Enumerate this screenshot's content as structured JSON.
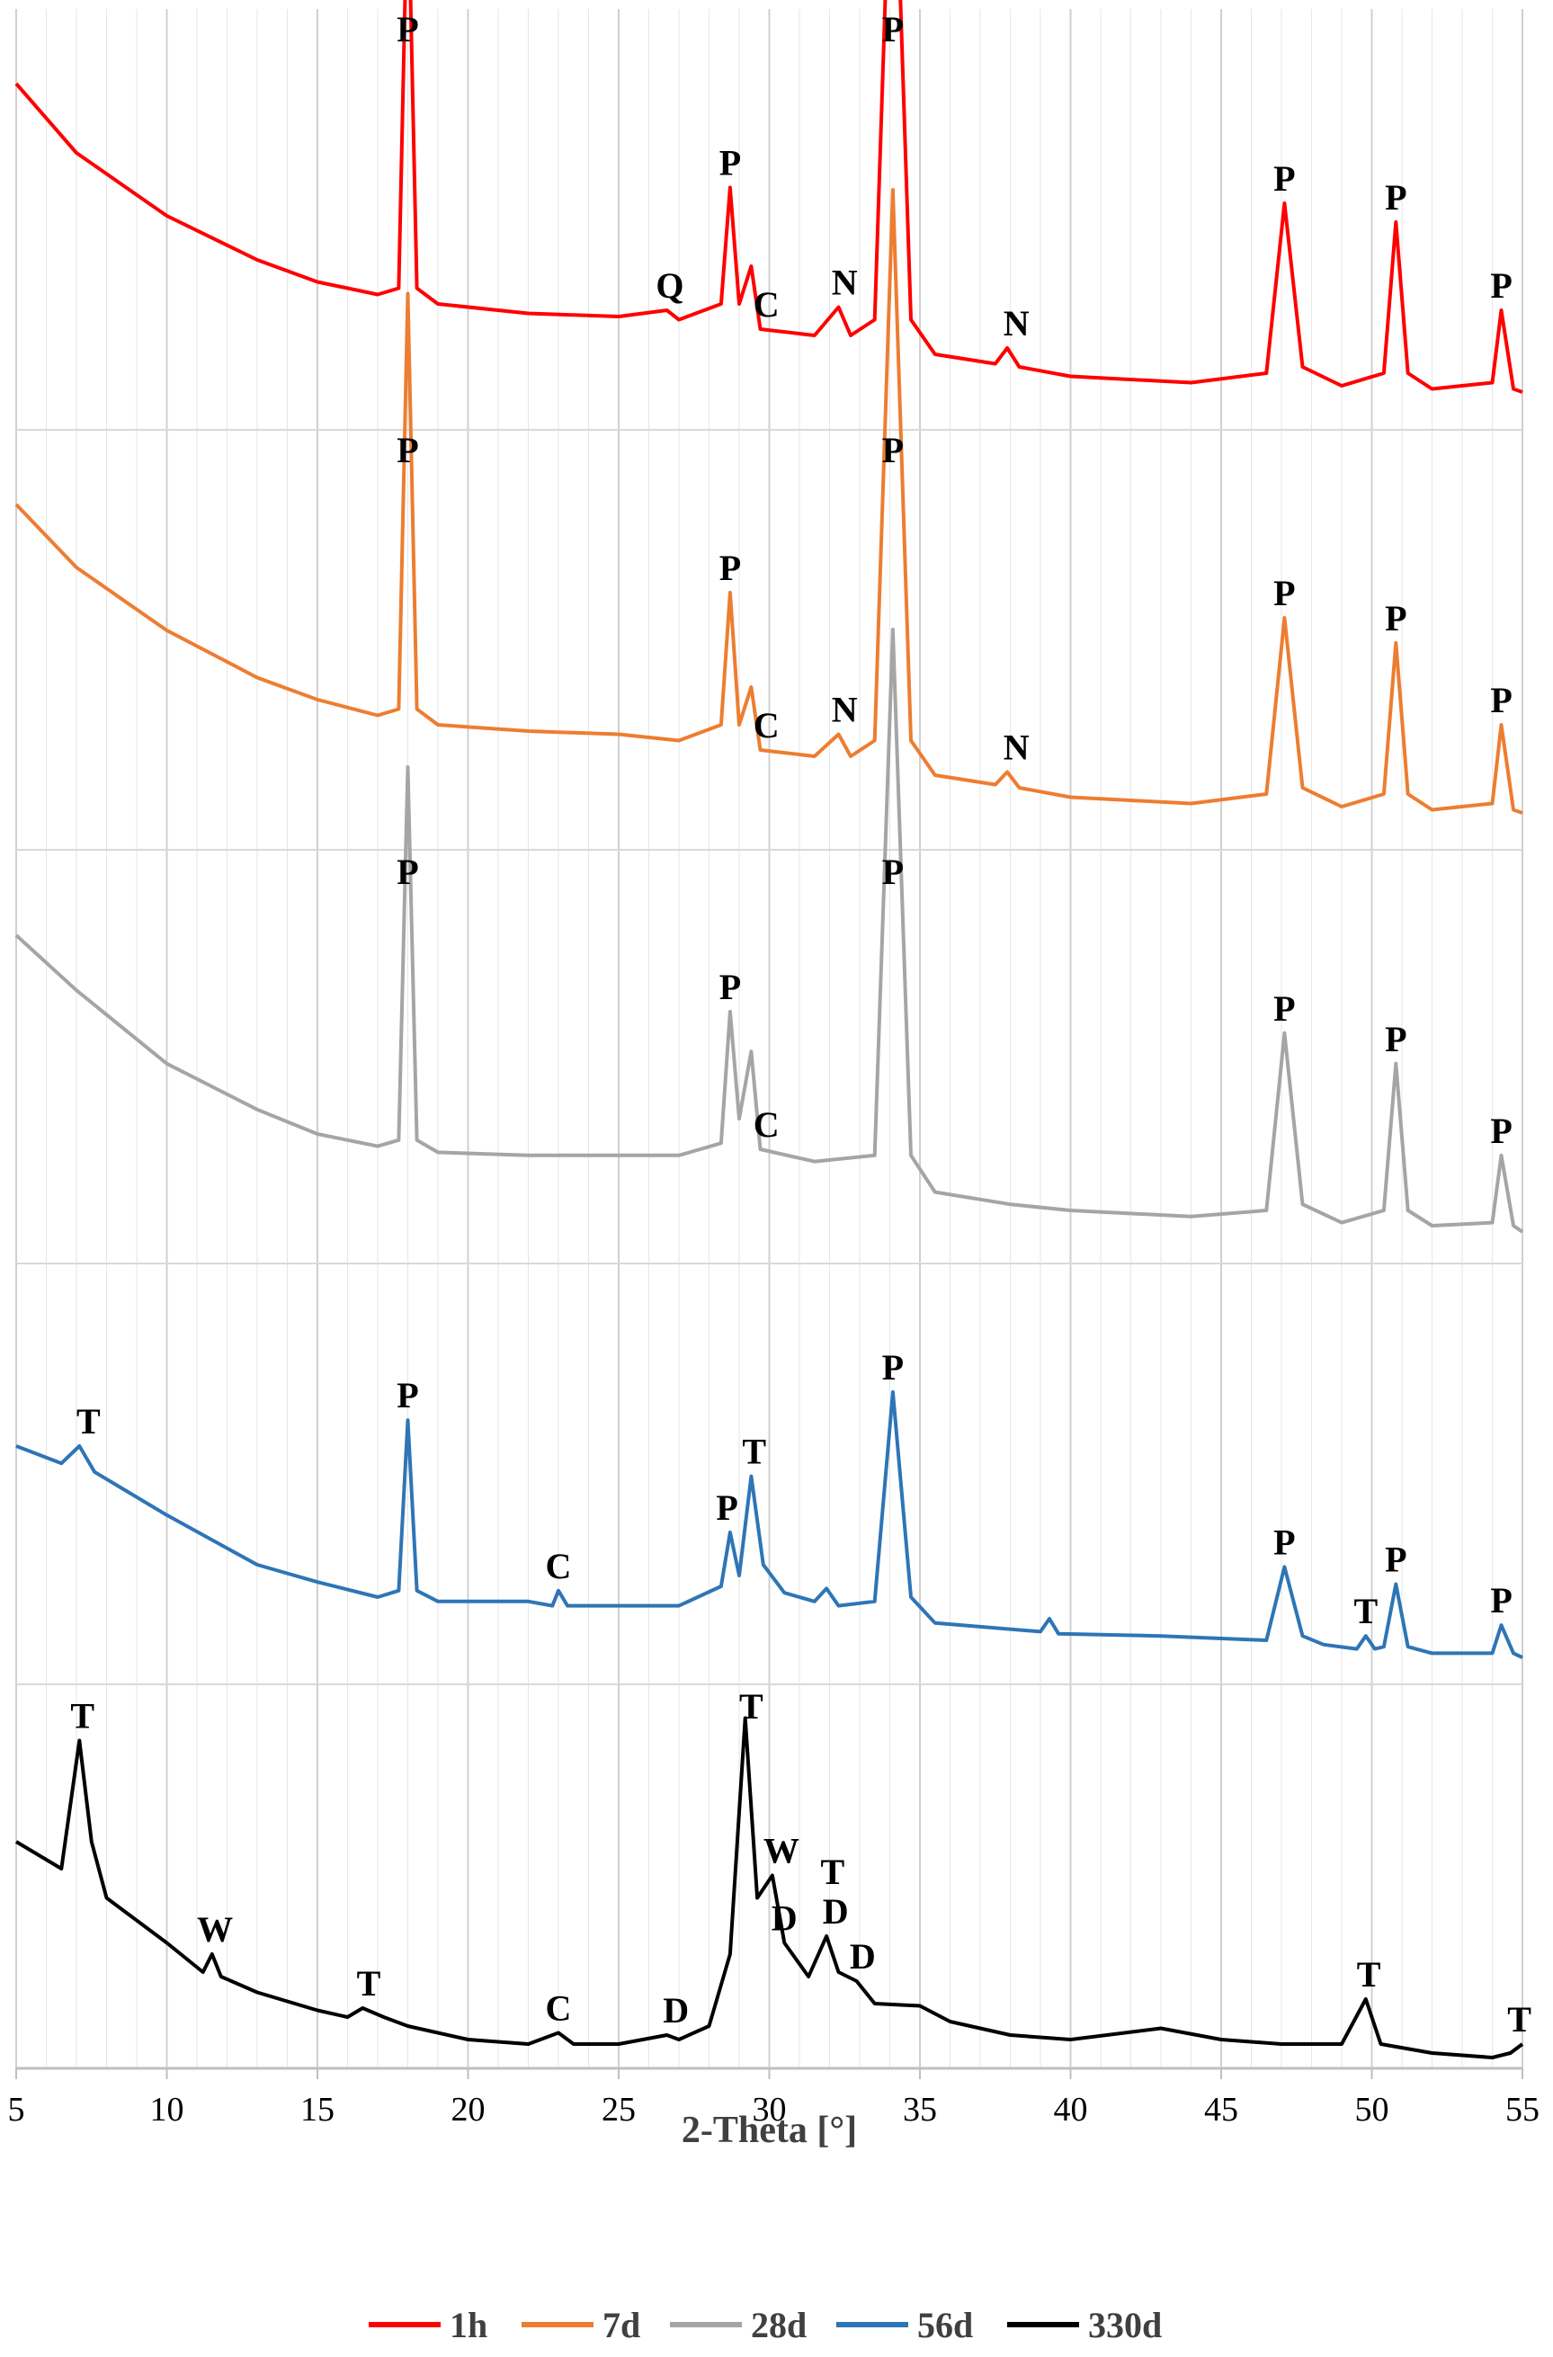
{
  "chart_data": {
    "type": "line",
    "xlabel": "2-Theta [°]",
    "xlim": [
      5,
      55
    ],
    "xticks": [
      5,
      10,
      15,
      20,
      25,
      30,
      35,
      40,
      45,
      50,
      55
    ],
    "ylabel": "",
    "yticks_shown": false,
    "grid": "vertical minor gridlines",
    "legend_position": "bottom",
    "series": [
      {
        "name": "1h",
        "color": "#ff0000",
        "points": [
          [
            5,
            1.0
          ],
          [
            7,
            0.78
          ],
          [
            10,
            0.58
          ],
          [
            13,
            0.44
          ],
          [
            15,
            0.37
          ],
          [
            17,
            0.33
          ],
          [
            17.7,
            0.35
          ],
          [
            18,
            1.67
          ],
          [
            18.3,
            0.35
          ],
          [
            19,
            0.3
          ],
          [
            22,
            0.27
          ],
          [
            25,
            0.26
          ],
          [
            26.6,
            0.28
          ],
          [
            27,
            0.25
          ],
          [
            28.4,
            0.3
          ],
          [
            28.7,
            0.67
          ],
          [
            29,
            0.3
          ],
          [
            29.4,
            0.42
          ],
          [
            29.7,
            0.22
          ],
          [
            31.5,
            0.2
          ],
          [
            32.3,
            0.29
          ],
          [
            32.7,
            0.2
          ],
          [
            33.5,
            0.25
          ],
          [
            34.1,
            2.0
          ],
          [
            34.7,
            0.25
          ],
          [
            35.5,
            0.14
          ],
          [
            37.5,
            0.11
          ],
          [
            37.9,
            0.16
          ],
          [
            38.3,
            0.1
          ],
          [
            40,
            0.07
          ],
          [
            44,
            0.05
          ],
          [
            46.5,
            0.08
          ],
          [
            47.1,
            0.62
          ],
          [
            47.7,
            0.1
          ],
          [
            49,
            0.04
          ],
          [
            50.4,
            0.08
          ],
          [
            50.8,
            0.56
          ],
          [
            51.2,
            0.08
          ],
          [
            52,
            0.03
          ],
          [
            54,
            0.05
          ],
          [
            54.3,
            0.28
          ],
          [
            54.7,
            0.03
          ],
          [
            55,
            0.02
          ]
        ],
        "labels": [
          {
            "x": 18.0,
            "text": "P"
          },
          {
            "x": 26.7,
            "text": "Q"
          },
          {
            "x": 28.7,
            "text": "P"
          },
          {
            "x": 29.9,
            "text": "C"
          },
          {
            "x": 32.5,
            "text": "N"
          },
          {
            "x": 34.1,
            "text": "P"
          },
          {
            "x": 38.2,
            "text": "N"
          },
          {
            "x": 47.1,
            "text": "P"
          },
          {
            "x": 50.8,
            "text": "P"
          },
          {
            "x": 54.3,
            "text": "P"
          }
        ]
      },
      {
        "name": "7d",
        "color": "#ed7d31",
        "points": [
          [
            5,
            1.0
          ],
          [
            7,
            0.8
          ],
          [
            10,
            0.6
          ],
          [
            13,
            0.45
          ],
          [
            15,
            0.38
          ],
          [
            17,
            0.33
          ],
          [
            17.7,
            0.35
          ],
          [
            18,
            1.67
          ],
          [
            18.3,
            0.35
          ],
          [
            19,
            0.3
          ],
          [
            22,
            0.28
          ],
          [
            25,
            0.27
          ],
          [
            27,
            0.25
          ],
          [
            28.4,
            0.3
          ],
          [
            28.7,
            0.72
          ],
          [
            29,
            0.3
          ],
          [
            29.4,
            0.42
          ],
          [
            29.7,
            0.22
          ],
          [
            31.5,
            0.2
          ],
          [
            32.3,
            0.27
          ],
          [
            32.7,
            0.2
          ],
          [
            33.5,
            0.25
          ],
          [
            34.1,
            2.0
          ],
          [
            34.7,
            0.25
          ],
          [
            35.5,
            0.14
          ],
          [
            37.5,
            0.11
          ],
          [
            37.9,
            0.15
          ],
          [
            38.3,
            0.1
          ],
          [
            40,
            0.07
          ],
          [
            44,
            0.05
          ],
          [
            46.5,
            0.08
          ],
          [
            47.1,
            0.64
          ],
          [
            47.7,
            0.1
          ],
          [
            49,
            0.04
          ],
          [
            50.4,
            0.08
          ],
          [
            50.8,
            0.56
          ],
          [
            51.2,
            0.08
          ],
          [
            52,
            0.03
          ],
          [
            54,
            0.05
          ],
          [
            54.3,
            0.3
          ],
          [
            54.7,
            0.03
          ],
          [
            55,
            0.02
          ]
        ],
        "labels": [
          {
            "x": 18.0,
            "text": "P"
          },
          {
            "x": 28.7,
            "text": "P"
          },
          {
            "x": 29.9,
            "text": "C"
          },
          {
            "x": 32.5,
            "text": "N"
          },
          {
            "x": 34.1,
            "text": "P"
          },
          {
            "x": 38.2,
            "text": "N"
          },
          {
            "x": 47.1,
            "text": "P"
          },
          {
            "x": 50.8,
            "text": "P"
          },
          {
            "x": 54.3,
            "text": "P"
          }
        ]
      },
      {
        "name": "28d",
        "color": "#a5a5a5",
        "points": [
          [
            5,
            1.0
          ],
          [
            7,
            0.82
          ],
          [
            10,
            0.58
          ],
          [
            13,
            0.43
          ],
          [
            15,
            0.35
          ],
          [
            17,
            0.31
          ],
          [
            17.7,
            0.33
          ],
          [
            18,
            1.55
          ],
          [
            18.3,
            0.33
          ],
          [
            19,
            0.29
          ],
          [
            22,
            0.28
          ],
          [
            25,
            0.28
          ],
          [
            27,
            0.28
          ],
          [
            28.4,
            0.32
          ],
          [
            28.7,
            0.75
          ],
          [
            29,
            0.4
          ],
          [
            29.4,
            0.62
          ],
          [
            29.7,
            0.3
          ],
          [
            31.5,
            0.26
          ],
          [
            33.5,
            0.28
          ],
          [
            34.1,
            2.0
          ],
          [
            34.7,
            0.28
          ],
          [
            35.5,
            0.16
          ],
          [
            38,
            0.12
          ],
          [
            40,
            0.1
          ],
          [
            44,
            0.08
          ],
          [
            46.5,
            0.1
          ],
          [
            47.1,
            0.68
          ],
          [
            47.7,
            0.12
          ],
          [
            49,
            0.06
          ],
          [
            50.4,
            0.1
          ],
          [
            50.8,
            0.58
          ],
          [
            51.2,
            0.1
          ],
          [
            52,
            0.05
          ],
          [
            54,
            0.06
          ],
          [
            54.3,
            0.28
          ],
          [
            54.7,
            0.05
          ],
          [
            55,
            0.03
          ]
        ],
        "labels": [
          {
            "x": 18.0,
            "text": "P"
          },
          {
            "x": 28.7,
            "text": "P"
          },
          {
            "x": 29.9,
            "text": "C"
          },
          {
            "x": 34.1,
            "text": "P"
          },
          {
            "x": 47.1,
            "text": "P"
          },
          {
            "x": 50.8,
            "text": "P"
          },
          {
            "x": 54.3,
            "text": "P"
          }
        ]
      },
      {
        "name": "56d",
        "color": "#2e75b6",
        "points": [
          [
            5,
            1.0
          ],
          [
            6.5,
            0.92
          ],
          [
            7.1,
            1.0
          ],
          [
            7.6,
            0.88
          ],
          [
            10,
            0.68
          ],
          [
            13,
            0.45
          ],
          [
            15,
            0.37
          ],
          [
            17,
            0.3
          ],
          [
            17.7,
            0.33
          ],
          [
            18,
            1.12
          ],
          [
            18.3,
            0.33
          ],
          [
            19,
            0.28
          ],
          [
            22,
            0.28
          ],
          [
            22.8,
            0.26
          ],
          [
            23,
            0.33
          ],
          [
            23.3,
            0.26
          ],
          [
            25,
            0.26
          ],
          [
            27,
            0.26
          ],
          [
            28.4,
            0.35
          ],
          [
            28.7,
            0.6
          ],
          [
            29,
            0.4
          ],
          [
            29.4,
            0.86
          ],
          [
            29.8,
            0.45
          ],
          [
            30.5,
            0.32
          ],
          [
            31.5,
            0.28
          ],
          [
            31.9,
            0.34
          ],
          [
            32.3,
            0.26
          ],
          [
            33.5,
            0.28
          ],
          [
            34.1,
            1.25
          ],
          [
            34.7,
            0.3
          ],
          [
            35.5,
            0.18
          ],
          [
            39,
            0.14
          ],
          [
            39.3,
            0.2
          ],
          [
            39.6,
            0.13
          ],
          [
            43,
            0.12
          ],
          [
            46.5,
            0.1
          ],
          [
            47.1,
            0.44
          ],
          [
            47.7,
            0.12
          ],
          [
            48.4,
            0.08
          ],
          [
            49.5,
            0.06
          ],
          [
            49.8,
            0.12
          ],
          [
            50.1,
            0.06
          ],
          [
            50.4,
            0.07
          ],
          [
            50.8,
            0.36
          ],
          [
            51.2,
            0.07
          ],
          [
            52,
            0.04
          ],
          [
            54,
            0.04
          ],
          [
            54.3,
            0.17
          ],
          [
            54.7,
            0.04
          ],
          [
            55,
            0.02
          ]
        ],
        "labels": [
          {
            "x": 7.4,
            "text": "T"
          },
          {
            "x": 18.0,
            "text": "P"
          },
          {
            "x": 23.0,
            "text": "C"
          },
          {
            "x": 28.6,
            "text": "P"
          },
          {
            "x": 29.5,
            "text": "T"
          },
          {
            "x": 34.1,
            "text": "P"
          },
          {
            "x": 47.1,
            "text": "P"
          },
          {
            "x": 49.8,
            "text": "T"
          },
          {
            "x": 50.8,
            "text": "P"
          },
          {
            "x": 54.3,
            "text": "P"
          }
        ]
      },
      {
        "name": "330d",
        "color": "#000000",
        "points": [
          [
            5,
            1.0
          ],
          [
            6.5,
            0.88
          ],
          [
            7.1,
            1.45
          ],
          [
            7.5,
            1.0
          ],
          [
            8,
            0.75
          ],
          [
            10,
            0.55
          ],
          [
            11.2,
            0.42
          ],
          [
            11.5,
            0.5
          ],
          [
            11.8,
            0.4
          ],
          [
            13,
            0.33
          ],
          [
            15,
            0.25
          ],
          [
            16,
            0.22
          ],
          [
            16.5,
            0.26
          ],
          [
            17.2,
            0.22
          ],
          [
            18,
            0.18
          ],
          [
            20,
            0.12
          ],
          [
            22,
            0.1
          ],
          [
            23,
            0.15
          ],
          [
            23.5,
            0.1
          ],
          [
            25,
            0.1
          ],
          [
            26.6,
            0.14
          ],
          [
            27,
            0.12
          ],
          [
            28,
            0.18
          ],
          [
            28.7,
            0.5
          ],
          [
            29.2,
            1.55
          ],
          [
            29.6,
            0.75
          ],
          [
            30.1,
            0.85
          ],
          [
            30.5,
            0.55
          ],
          [
            31.3,
            0.4
          ],
          [
            31.9,
            0.58
          ],
          [
            32.3,
            0.42
          ],
          [
            32.9,
            0.38
          ],
          [
            33.5,
            0.28
          ],
          [
            35,
            0.27
          ],
          [
            36,
            0.2
          ],
          [
            38,
            0.14
          ],
          [
            40,
            0.12
          ],
          [
            43,
            0.17
          ],
          [
            45,
            0.12
          ],
          [
            47,
            0.1
          ],
          [
            49,
            0.1
          ],
          [
            49.8,
            0.3
          ],
          [
            50.3,
            0.1
          ],
          [
            52,
            0.06
          ],
          [
            54,
            0.04
          ],
          [
            54.6,
            0.06
          ],
          [
            55,
            0.1
          ]
        ],
        "labels": [
          {
            "x": 7.2,
            "text": "T"
          },
          {
            "x": 11.6,
            "text": "W"
          },
          {
            "x": 16.7,
            "text": "T"
          },
          {
            "x": 23.0,
            "text": "C"
          },
          {
            "x": 26.9,
            "text": "D"
          },
          {
            "x": 29.4,
            "text": "T"
          },
          {
            "x": 30.5,
            "text": "D"
          },
          {
            "x": 30.4,
            "text": "W"
          },
          {
            "x": 32.2,
            "text": "D"
          },
          {
            "x": 32.1,
            "text": "T"
          },
          {
            "x": 33.1,
            "text": "D"
          },
          {
            "x": 49.9,
            "text": "T"
          },
          {
            "x": 54.9,
            "text": "T"
          }
        ]
      }
    ]
  }
}
